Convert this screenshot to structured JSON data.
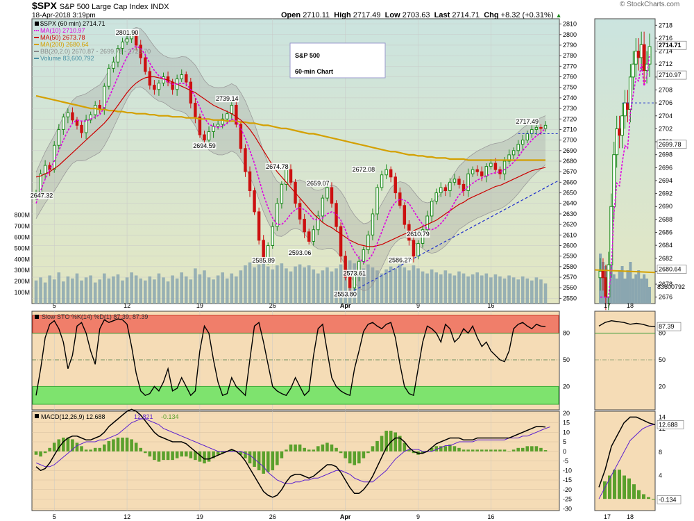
{
  "header": {
    "symbol": "$SPX",
    "description": "S&P 500 Large Cap Index",
    "exchange": "INDX",
    "date": "18-Apr-2018 3:19pm",
    "open_label": "Open",
    "open": "2710.11",
    "high_label": "High",
    "high": "2717.49",
    "low_label": "Low",
    "low": "2703.63",
    "last_label": "Last",
    "last": "2714.71",
    "chg_label": "Chg",
    "chg": "+8.32 (+0.31%)",
    "brand": "© StockCharts.com"
  },
  "chart_data": [
    {
      "type": "line",
      "panel": "price",
      "title": "S&P 500",
      "subtitle": "60-min Chart",
      "legend": [
        {
          "label": "$SPX (60 min) 2714.71",
          "color": "#000000"
        },
        {
          "label": "MA(10) 2710.97",
          "color": "#e000e0"
        },
        {
          "label": "MA(50) 2673.78",
          "color": "#cc0000"
        },
        {
          "label": "MA(200) 2680.64",
          "color": "#d4a000"
        },
        {
          "label": "BB(20,2.0) 2670.87 - 2699.78 - 2728.70",
          "color": "#888888"
        },
        {
          "label": "Volume 83,600,792",
          "color": "#4a90a4"
        }
      ],
      "ylim": [
        2545,
        2815
      ],
      "y_ticks": [
        2550,
        2560,
        2570,
        2580,
        2590,
        2600,
        2610,
        2620,
        2630,
        2640,
        2650,
        2660,
        2670,
        2680,
        2690,
        2700,
        2710,
        2720,
        2730,
        2740,
        2750,
        2760,
        2770,
        2780,
        2790,
        2800,
        2810
      ],
      "volume_ticks": [
        "100M",
        "200M",
        "300M",
        "400M",
        "500M",
        "600M",
        "700M",
        "800M"
      ],
      "x_ticks": [
        "5",
        "12",
        "19",
        "26",
        "Apr",
        "9",
        "16"
      ],
      "annotations": [
        "2647.32",
        "2801.90",
        "2739.14",
        "2694.59",
        "2674.78",
        "2659.07",
        "2672.08",
        "2717.49",
        "2585.89",
        "2593.06",
        "2573.61",
        "2586.27",
        "2610.79",
        "2553.80"
      ],
      "last_value_label": "2714.71",
      "ma10_value_label": "2710.97",
      "ma200_value_label": "2680.64",
      "close": [
        2650,
        2668,
        2676,
        2672,
        2695,
        2710,
        2722,
        2726,
        2719,
        2714,
        2707,
        2719,
        2724,
        2733,
        2730,
        2751,
        2768,
        2774,
        2787,
        2793,
        2796,
        2801,
        2790,
        2778,
        2765,
        2752,
        2748,
        2754,
        2760,
        2755,
        2748,
        2758,
        2762,
        2755,
        2735,
        2722,
        2705,
        2700,
        2708,
        2713,
        2715,
        2720,
        2725,
        2733,
        2715,
        2692,
        2670,
        2652,
        2632,
        2605,
        2588,
        2600,
        2618,
        2640,
        2658,
        2672,
        2660,
        2640,
        2625,
        2613,
        2604,
        2615,
        2628,
        2645,
        2655,
        2640,
        2618,
        2590,
        2570,
        2560,
        2572,
        2585,
        2596,
        2610,
        2630,
        2655,
        2667,
        2672,
        2665,
        2650,
        2638,
        2620,
        2605,
        2590,
        2602,
        2615,
        2628,
        2642,
        2650,
        2655,
        2652,
        2660,
        2663,
        2658,
        2652,
        2668,
        2672,
        2670,
        2666,
        2675,
        2678,
        2672,
        2668,
        2680,
        2686,
        2690,
        2696,
        2700,
        2706,
        2710,
        2712,
        2711,
        2714
      ],
      "ma10": [
        2640,
        2652,
        2663,
        2672,
        2680,
        2690,
        2700,
        2709,
        2716,
        2719,
        2718,
        2718,
        2720,
        2722,
        2724,
        2731,
        2740,
        2750,
        2760,
        2770,
        2779,
        2786,
        2789,
        2787,
        2781,
        2773,
        2766,
        2761,
        2758,
        2755,
        2753,
        2753,
        2754,
        2753,
        2748,
        2741,
        2731,
        2721,
        2715,
        2713,
        2712,
        2713,
        2716,
        2720,
        2718,
        2711,
        2702,
        2690,
        2678,
        2663,
        2648,
        2636,
        2626,
        2620,
        2620,
        2624,
        2630,
        2634,
        2636,
        2634,
        2630,
        2625,
        2624,
        2626,
        2630,
        2632,
        2630,
        2624,
        2615,
        2603,
        2594,
        2588,
        2584,
        2586,
        2592,
        2602,
        2613,
        2624,
        2635,
        2641,
        2644,
        2643,
        2640,
        2633,
        2626,
        2620,
        2616,
        2615,
        2617,
        2621,
        2626,
        2633,
        2641,
        2648,
        2652,
        2656,
        2659,
        2662,
        2664,
        2666,
        2668,
        2669,
        2670,
        2672,
        2675,
        2679,
        2684,
        2690,
        2695,
        2700,
        2704,
        2707,
        2711
      ],
      "ma50": [
        2665,
        2666,
        2668,
        2670,
        2673,
        2676,
        2680,
        2684,
        2688,
        2692,
        2696,
        2700,
        2704,
        2708,
        2712,
        2716,
        2721,
        2727,
        2733,
        2739,
        2745,
        2750,
        2754,
        2757,
        2759,
        2760,
        2760,
        2759,
        2758,
        2757,
        2755,
        2753,
        2751,
        2749,
        2747,
        2745,
        2742,
        2739,
        2736,
        2733,
        2731,
        2729,
        2727,
        2725,
        2722,
        2719,
        2715,
        2710,
        2704,
        2697,
        2690,
        2683,
        2676,
        2670,
        2665,
        2660,
        2655,
        2650,
        2645,
        2640,
        2635,
        2630,
        2626,
        2622,
        2619,
        2617,
        2614,
        2611,
        2608,
        2605,
        2603,
        2601,
        2600,
        2599,
        2599,
        2600,
        2601,
        2603,
        2605,
        2607,
        2609,
        2611,
        2612,
        2614,
        2616,
        2618,
        2620,
        2622,
        2624,
        2627,
        2630,
        2633,
        2636,
        2639,
        2641,
        2644,
        2646,
        2648,
        2650,
        2652,
        2654,
        2656,
        2657,
        2659,
        2661,
        2663,
        2665,
        2667,
        2669,
        2671,
        2672,
        2673,
        2674
      ],
      "ma200": [
        2742,
        2741,
        2740,
        2739,
        2738,
        2737,
        2736,
        2735,
        2734,
        2733,
        2732,
        2731,
        2730,
        2730,
        2729,
        2729,
        2728,
        2728,
        2727,
        2727,
        2726,
        2726,
        2725,
        2725,
        2725,
        2724,
        2724,
        2723,
        2723,
        2723,
        2722,
        2722,
        2722,
        2721,
        2721,
        2721,
        2720,
        2720,
        2720,
        2719,
        2719,
        2719,
        2718,
        2718,
        2718,
        2717,
        2717,
        2716,
        2716,
        2715,
        2714,
        2714,
        2713,
        2712,
        2711,
        2711,
        2710,
        2709,
        2708,
        2707,
        2706,
        2706,
        2705,
        2704,
        2703,
        2702,
        2701,
        2700,
        2699,
        2698,
        2697,
        2696,
        2695,
        2694,
        2693,
        2692,
        2691,
        2690,
        2689,
        2689,
        2688,
        2687,
        2686,
        2686,
        2685,
        2685,
        2684,
        2684,
        2683,
        2683,
        2683,
        2682,
        2682,
        2682,
        2682,
        2681,
        2681,
        2681,
        2681,
        2681,
        2681,
        2681,
        2681,
        2681,
        2681,
        2681,
        2681,
        2681,
        2681,
        2681,
        2681,
        2681,
        2681
      ],
      "volume": [
        230,
        260,
        210,
        280,
        240,
        310,
        220,
        270,
        250,
        300,
        230,
        260,
        280,
        210,
        240,
        300,
        250,
        270,
        290,
        230,
        260,
        310,
        280,
        250,
        230,
        270,
        240,
        300,
        260,
        220,
        280,
        250,
        310,
        270,
        240,
        350,
        290,
        330,
        260,
        240,
        280,
        310,
        250,
        300,
        270,
        330,
        380,
        410,
        360,
        390,
        420,
        370,
        340,
        380,
        400,
        350,
        320,
        370,
        390,
        360,
        380,
        340,
        300,
        330,
        360,
        320,
        350,
        390,
        410,
        430,
        400,
        370,
        350,
        390,
        360,
        330,
        300,
        340,
        370,
        350,
        390,
        360,
        330,
        380,
        350,
        320,
        300,
        340,
        310,
        290,
        330,
        300,
        280,
        320,
        300,
        270,
        290,
        310,
        280,
        300,
        260,
        290,
        270,
        250,
        280,
        260,
        240,
        270,
        250,
        230,
        260,
        240,
        200
      ]
    },
    {
      "type": "line",
      "panel": "stochastic",
      "legend": "Slow STO %K(14) %D(1) 87.39, 87.39",
      "ylim": [
        0,
        100
      ],
      "y_ticks": [
        20,
        50,
        80
      ],
      "last_value_label": "87.39",
      "values": [
        10,
        40,
        75,
        90,
        94,
        85,
        70,
        40,
        55,
        88,
        92,
        80,
        60,
        45,
        85,
        95,
        92,
        94,
        96,
        95,
        90,
        65,
        35,
        15,
        10,
        12,
        20,
        15,
        25,
        40,
        15,
        18,
        30,
        20,
        10,
        15,
        60,
        88,
        80,
        50,
        25,
        10,
        12,
        30,
        20,
        15,
        10,
        50,
        88,
        92,
        70,
        45,
        20,
        15,
        12,
        10,
        18,
        30,
        20,
        10,
        15,
        55,
        85,
        90,
        60,
        30,
        20,
        15,
        12,
        10,
        40,
        60,
        82,
        90,
        92,
        88,
        85,
        90,
        92,
        75,
        45,
        20,
        12,
        10,
        40,
        70,
        88,
        85,
        80,
        70,
        90,
        85,
        70,
        75,
        85,
        80,
        88,
        75,
        65,
        70,
        60,
        55,
        50,
        48,
        60,
        85,
        90,
        92,
        88,
        85,
        90,
        88,
        87.39
      ]
    },
    {
      "type": "line",
      "panel": "macd",
      "legend_macd": "MACD(12,26,9) 12.688",
      "legend_signal": "12.821",
      "legend_hist": "-0.134",
      "ylim": [
        -31,
        21
      ],
      "y_ticks": [
        -30,
        -25,
        -20,
        -15,
        -10,
        -5,
        0,
        5,
        10,
        15,
        20
      ],
      "last_value_label": "12.688",
      "last_hist_label": "-0.134",
      "macd": [
        -8,
        -10,
        -9,
        -6,
        -2,
        2,
        5,
        7,
        8,
        8,
        7,
        6,
        6,
        7,
        8,
        10,
        13,
        15,
        17,
        19,
        21,
        22,
        21,
        19,
        16,
        13,
        10,
        8,
        7,
        6,
        5,
        5,
        5,
        4,
        2,
        0,
        -2,
        -4,
        -4,
        -3,
        -2,
        -1,
        0,
        1,
        0,
        -2,
        -5,
        -9,
        -13,
        -17,
        -21,
        -23,
        -24,
        -23,
        -20,
        -16,
        -13,
        -12,
        -12,
        -13,
        -14,
        -13,
        -11,
        -9,
        -7,
        -7,
        -8,
        -11,
        -15,
        -19,
        -22,
        -22,
        -20,
        -17,
        -13,
        -8,
        -3,
        2,
        5,
        7,
        7,
        5,
        2,
        0,
        -1,
        -1,
        0,
        2,
        4,
        5,
        6,
        7,
        7,
        7,
        6,
        6,
        6,
        7,
        7,
        7,
        7,
        7,
        7,
        7,
        7,
        8,
        9,
        10,
        11,
        12,
        13,
        13,
        12.7
      ],
      "signal": [
        -6,
        -7,
        -8,
        -8,
        -7,
        -5,
        -3,
        -1,
        1,
        3,
        4,
        5,
        5,
        5,
        6,
        6,
        7,
        8,
        9,
        11,
        13,
        15,
        16,
        17,
        17,
        16,
        15,
        14,
        12,
        11,
        10,
        9,
        8,
        7,
        6,
        5,
        4,
        3,
        2,
        1,
        0,
        0,
        0,
        0,
        0,
        0,
        -1,
        -2,
        -4,
        -6,
        -8,
        -11,
        -13,
        -15,
        -16,
        -17,
        -17,
        -16,
        -16,
        -15,
        -15,
        -14,
        -14,
        -13,
        -12,
        -11,
        -10,
        -10,
        -11,
        -12,
        -14,
        -15,
        -16,
        -16,
        -16,
        -14,
        -12,
        -10,
        -7,
        -4,
        -2,
        0,
        1,
        1,
        1,
        0,
        0,
        0,
        1,
        2,
        3,
        3,
        4,
        5,
        5,
        5,
        5,
        6,
        6,
        6,
        6,
        6,
        6,
        6,
        7,
        7,
        7,
        8,
        8,
        9,
        10,
        11,
        12,
        12.8
      ]
    }
  ],
  "mini_chart": {
    "price_ticks": [
      2676,
      2678,
      2680,
      2682,
      2684,
      2686,
      2688,
      2690,
      2692,
      2694,
      2696,
      2698,
      2700,
      2702,
      2704,
      2706,
      2708,
      2710,
      2712,
      2714,
      2716,
      2718
    ],
    "x_ticks": [
      "17",
      "18"
    ],
    "last_value_label": "2714.71",
    "ma10_value_label": "2710.97",
    "bb_value_label": "2699.78",
    "ma200_value_label": "2680.64",
    "volume_label": "83600792",
    "sto_ticks": [
      20,
      50,
      80
    ],
    "sto_value_label": "87.39",
    "macd_ticks": [
      0,
      4,
      8,
      12,
      14
    ],
    "macd_value_label": "12.688",
    "hist_value_label": "-0.134"
  },
  "colors": {
    "price_bg": "#e3e6c2",
    "price_bg_top": "#cbe4df",
    "sto_bg": "#f5dcb6",
    "macd_bg": "#f5dcb6",
    "overbought": "#f07e6a",
    "oversold": "#7ee36e",
    "candle_up": "#1b8a1b",
    "candle_down": "#cc1010",
    "ma10": "#e000e0",
    "ma50": "#cc0000",
    "ma200": "#d4a000",
    "bb": "#9a9a9a",
    "volume": "#8aa6b0",
    "hist": "#5aa02c",
    "signal": "#5a1fcf",
    "title_text": "#0000cc"
  }
}
